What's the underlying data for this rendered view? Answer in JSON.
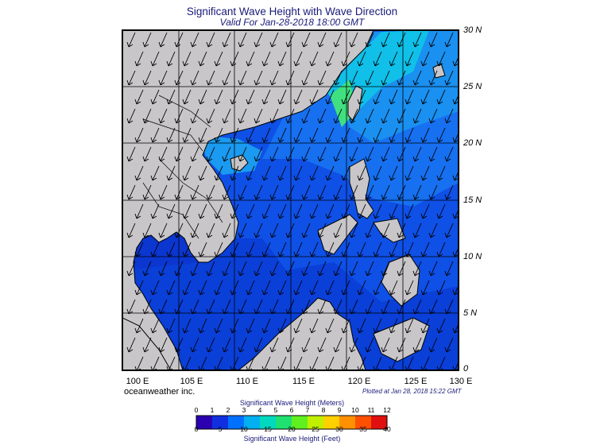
{
  "header": {
    "title": "Significant Wave Height with Wave Direction",
    "subtitle": "Valid For Jan-28-2018 18:00 GMT"
  },
  "map": {
    "lat_labels": [
      "30 N",
      "25 N",
      "20 N",
      "15 N",
      "10 N",
      "5 N",
      "0"
    ],
    "lon_labels": [
      "100 E",
      "105 E",
      "110 E",
      "115 E",
      "120 E",
      "125 E",
      "130 E"
    ],
    "land_color": "#c8c6c8",
    "sea_color": "#0f50e6",
    "dominant_wave_direction": "from north-east"
  },
  "footer": {
    "credit": "oceanweather inc.",
    "plotted": "Plotted at Jan 28, 2018 15:22 GMT"
  },
  "colorbar": {
    "title_meters": "Significant Wave Height (Meters)",
    "title_feet": "Significant Wave Height (Feet)",
    "meters_ticks": [
      "0",
      "1",
      "2",
      "3",
      "4",
      "5",
      "6",
      "7",
      "8",
      "9",
      "10",
      "11",
      "12"
    ],
    "feet_ticks": [
      "0",
      "5",
      "10",
      "15",
      "20",
      "25",
      "30",
      "35",
      "40"
    ],
    "colors": [
      "#2a00b0",
      "#1030e0",
      "#0070ff",
      "#00b0f0",
      "#00d8c0",
      "#20e070",
      "#60f020",
      "#c0f000",
      "#ffd000",
      "#ff9000",
      "#ff5000",
      "#e01010"
    ]
  }
}
